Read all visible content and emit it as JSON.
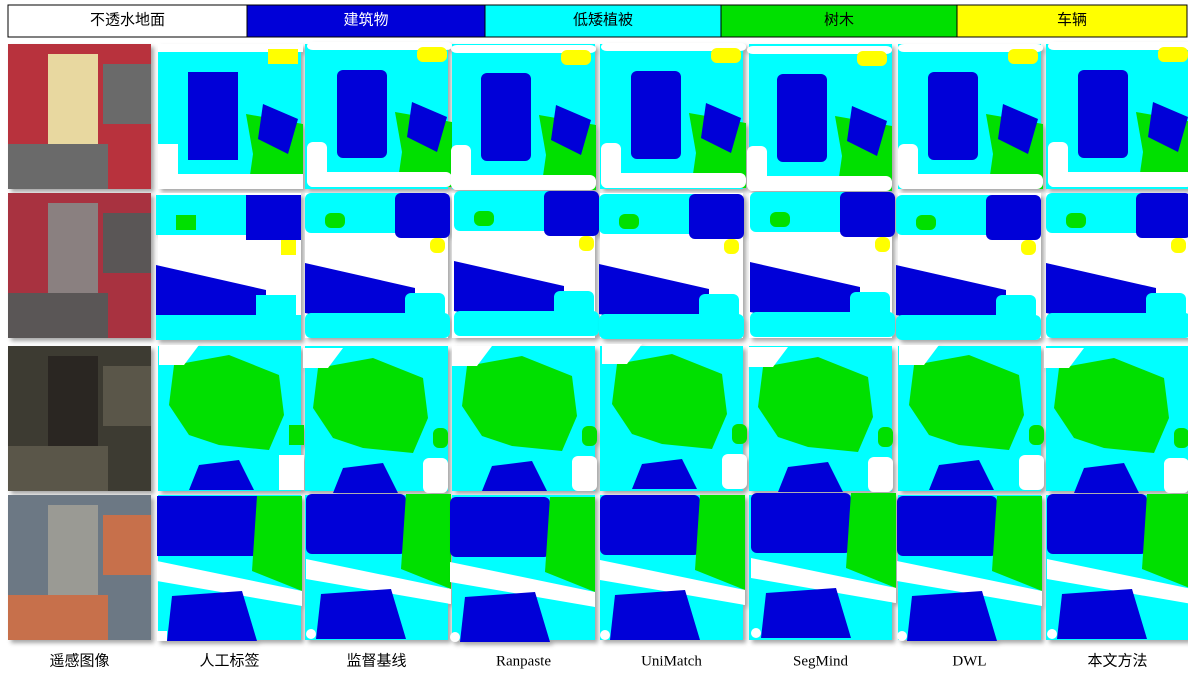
{
  "legend": [
    {
      "label": "不透水地面",
      "color": "#ffffff"
    },
    {
      "label": "建筑物",
      "color": "#0000d8"
    },
    {
      "label": "低矮植被",
      "color": "#00ffff"
    },
    {
      "label": "树木",
      "color": "#00e000"
    },
    {
      "label": "车辆",
      "color": "#ffff00"
    }
  ],
  "columns": [
    "遥感图像",
    "人工标签",
    "监督基线",
    "Ranpaste",
    "UniMatch",
    "SegMind",
    "DWL",
    "本文方法"
  ]
}
